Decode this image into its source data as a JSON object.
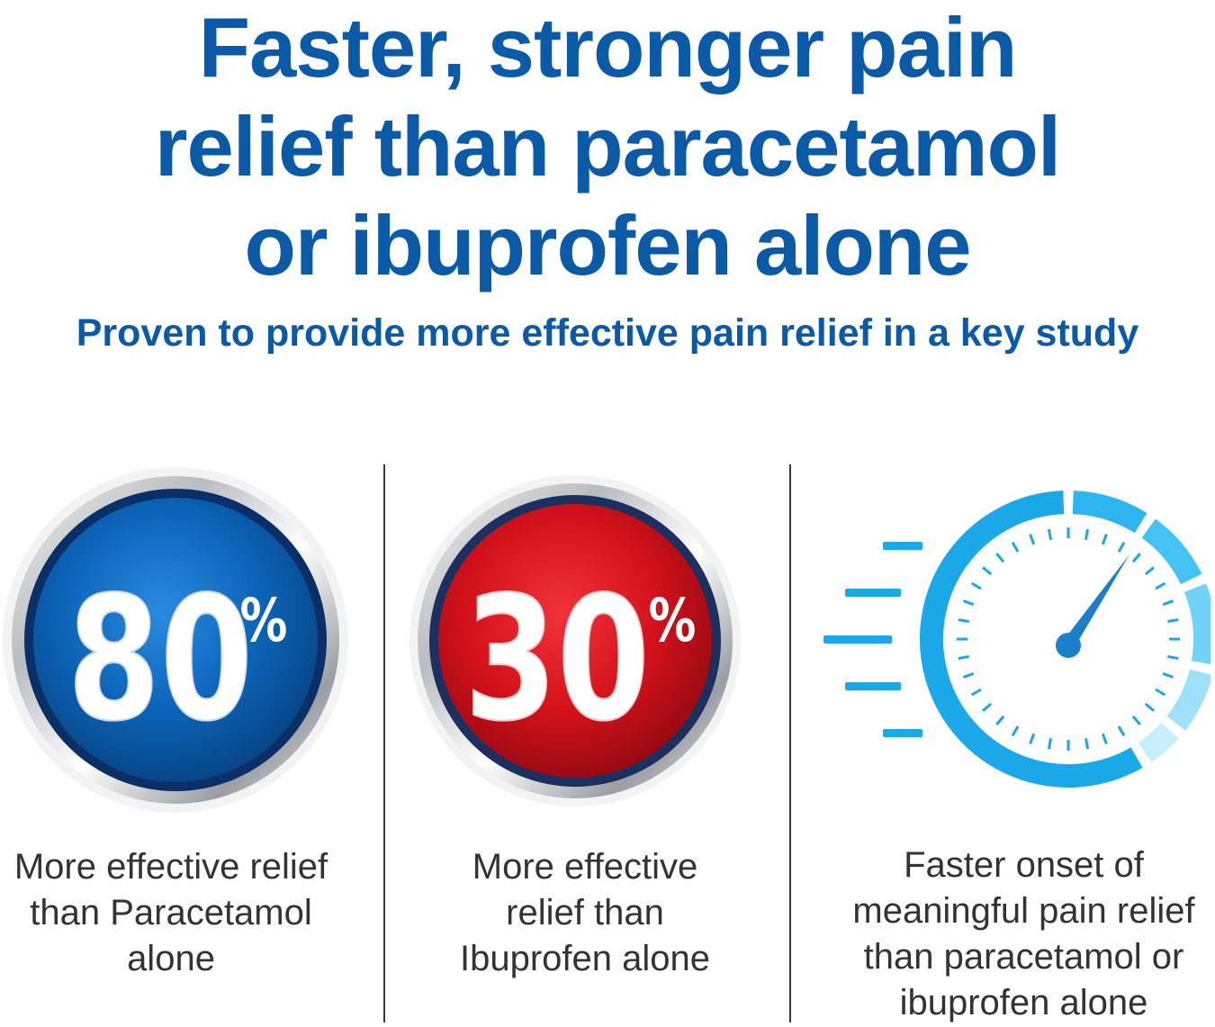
{
  "headline": {
    "lines": [
      "Faster, stronger pain",
      "relief than paracetamol",
      "or ibuprofen alone"
    ]
  },
  "subheadline": "Proven to provide more effective pain relief in a key study",
  "colors": {
    "brand_blue": "#0a5aa8",
    "badge_blue": "#0b63b7",
    "badge_red": "#d2111b",
    "gauge_cyan": "#1aa8e8",
    "text_gray": "#333333"
  },
  "stats": [
    {
      "value": "80",
      "unit": "%",
      "caption_lines": [
        "More effective relief",
        "than Paracetamol",
        "alone"
      ]
    },
    {
      "value": "30",
      "unit": "%",
      "caption_lines": [
        "More effective",
        "relief than",
        "Ibuprofen alone"
      ]
    },
    {
      "icon": "speedometer-icon",
      "caption_lines": [
        "Faster onset of",
        "meaningful pain relief",
        "than paracetamol or",
        "ibuprofen alone"
      ]
    }
  ]
}
